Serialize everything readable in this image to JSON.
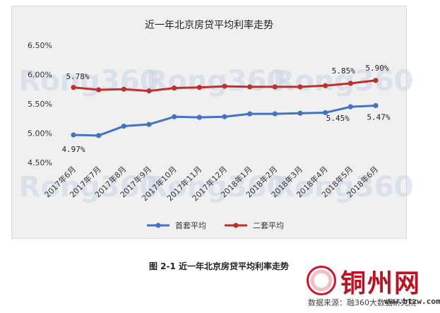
{
  "chart_data": {
    "type": "line",
    "title": "近一年北京房贷平均利率走势",
    "categories": [
      "2017年6月",
      "2017年7月",
      "2017年8月",
      "2017年9月",
      "2017年10月",
      "2017年11月",
      "2017年12月",
      "2018年1月",
      "2018年2月",
      "2018年3月",
      "2018年4月",
      "2018年5月",
      "2018年6月"
    ],
    "series": [
      {
        "name": "首套平均",
        "color": "#4472c4",
        "values": [
          4.97,
          4.96,
          5.12,
          5.15,
          5.28,
          5.27,
          5.28,
          5.33,
          5.33,
          5.34,
          5.35,
          5.45,
          5.47
        ]
      },
      {
        "name": "二套平均",
        "color": "#c0302a",
        "values": [
          5.78,
          5.74,
          5.75,
          5.72,
          5.77,
          5.78,
          5.8,
          5.79,
          5.79,
          5.79,
          5.81,
          5.85,
          5.9
        ]
      }
    ],
    "yticks": [
      "4.50%",
      "5.00%",
      "5.50%",
      "6.00%",
      "6.50%"
    ],
    "ylim": [
      4.5,
      6.5
    ],
    "data_labels": [
      {
        "series": 0,
        "index": 0,
        "text": "4.97%"
      },
      {
        "series": 0,
        "index": 11,
        "text": "5.45%"
      },
      {
        "series": 0,
        "index": 12,
        "text": "5.47%"
      },
      {
        "series": 1,
        "index": 0,
        "text": "5.78%"
      },
      {
        "series": 1,
        "index": 11,
        "text": "5.85%"
      },
      {
        "series": 1,
        "index": 12,
        "text": "5.90%"
      }
    ],
    "legend_position": "bottom",
    "grid": false,
    "watermark": "Rong360"
  },
  "caption": "图 2-1 近一年北京房贷平均利率走势",
  "logo": {
    "text": "铜州网",
    "url": "www.btzw.com"
  },
  "source": "数据来源：融360大数据研究院"
}
